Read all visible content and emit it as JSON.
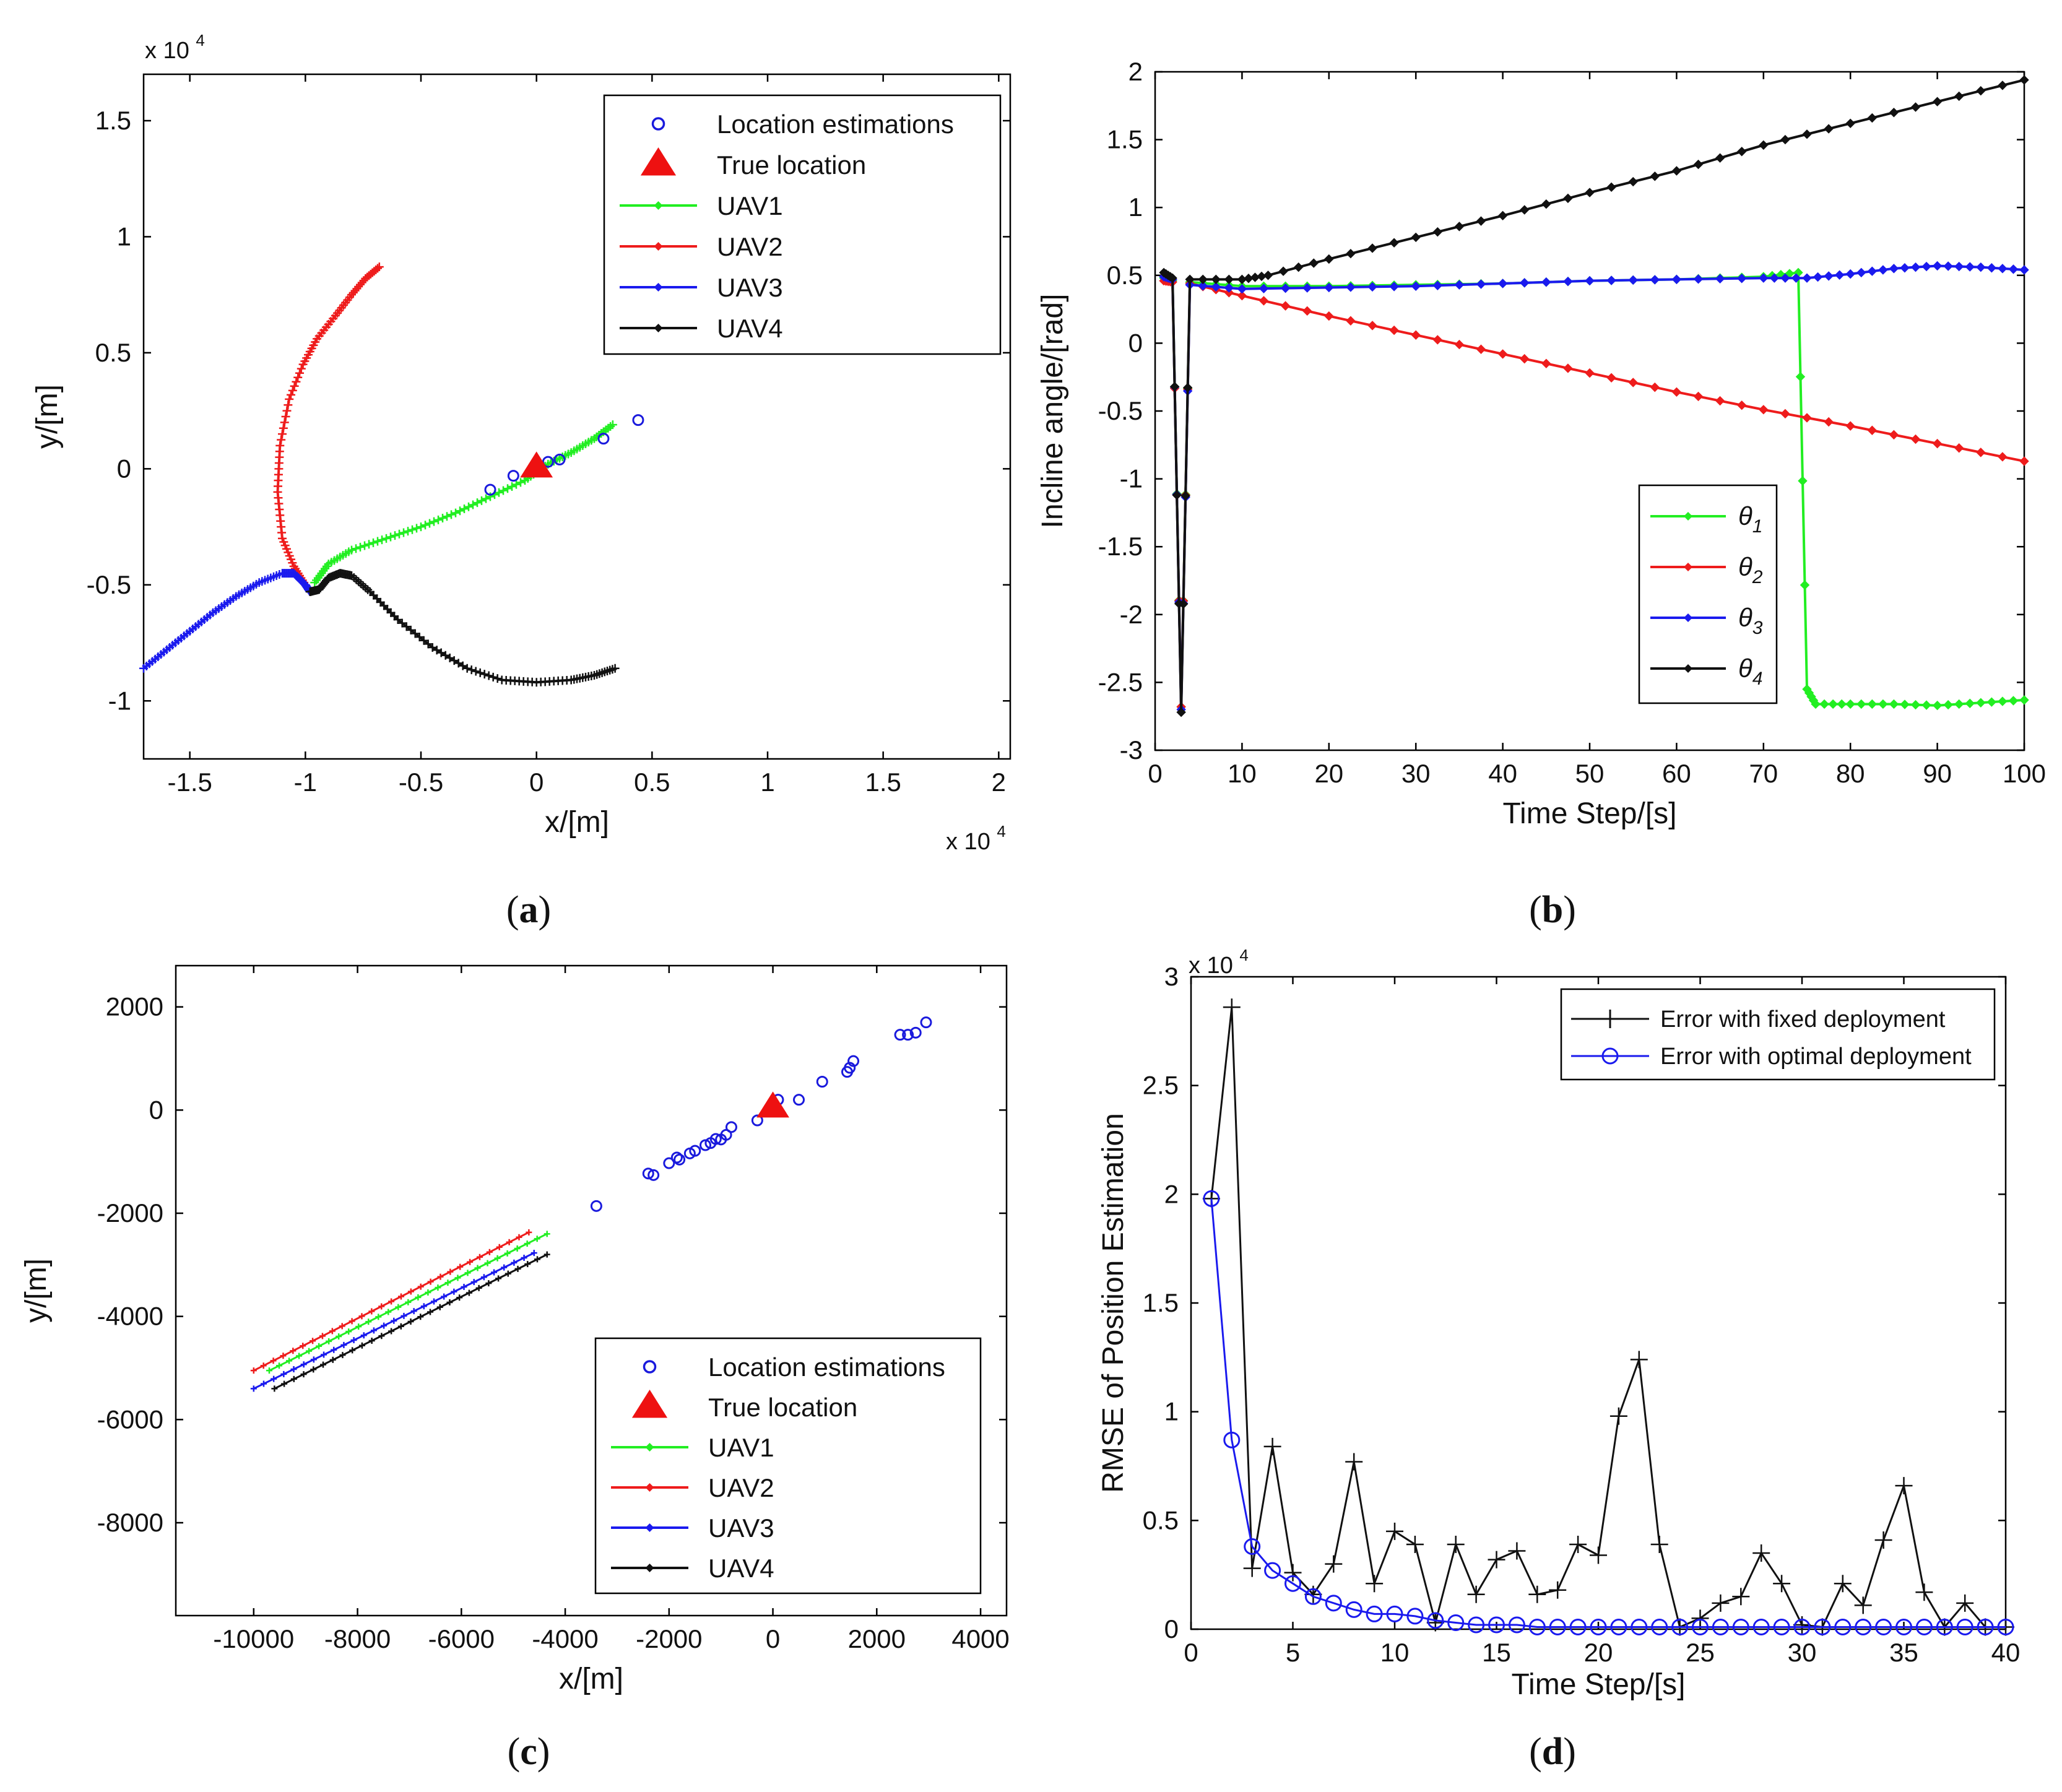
{
  "figure": {
    "panels": [
      {
        "id": "a",
        "caption_open": "(",
        "caption_letter": "a",
        "caption_close": ")"
      },
      {
        "id": "b",
        "caption_open": "(",
        "caption_letter": "b",
        "caption_close": ")"
      },
      {
        "id": "c",
        "caption_open": "(",
        "caption_letter": "c",
        "caption_close": ")"
      },
      {
        "id": "d",
        "caption_open": "(",
        "caption_letter": "d",
        "caption_close": ")"
      }
    ]
  },
  "colors": {
    "green": "#22ee22",
    "red": "#ee1c1c",
    "blue": "#1a1aee",
    "black": "#111111",
    "estimation": "#1a1add",
    "true_location": "#ee1111"
  },
  "chart_data": [
    {
      "id": "a",
      "type": "line",
      "title": "",
      "xlabel": "x/[m]",
      "ylabel": "y/[m]",
      "xlim": [
        -1.7,
        2.05
      ],
      "ylim": [
        -1.25,
        1.7
      ],
      "x_multiplier_base": "x 10",
      "x_multiplier_exp": "4",
      "y_multiplier_base": "x 10",
      "y_multiplier_exp": "4",
      "xticks": [
        -1.5,
        -1,
        -0.5,
        0,
        0.5,
        1,
        1.5,
        2
      ],
      "xtick_labels": [
        "-1.5",
        "-1",
        "-0.5",
        "0",
        "0.5",
        "1",
        "1.5",
        "2"
      ],
      "yticks": [
        -1,
        -0.5,
        0,
        0.5,
        1,
        1.5
      ],
      "ytick_labels": [
        "-1",
        "-0.5",
        "0",
        "0.5",
        "1",
        "1.5"
      ],
      "legend": [
        "Location estimations",
        "True location",
        "UAV1",
        "UAV2",
        "UAV3",
        "UAV4"
      ],
      "legend_position": "top-right",
      "series": [
        {
          "name": "UAV1",
          "color": "green",
          "points": [
            [
              -0.96,
              -0.49
            ],
            [
              -0.9,
              -0.41
            ],
            [
              -0.8,
              -0.35
            ],
            [
              -0.65,
              -0.3
            ],
            [
              -0.5,
              -0.25
            ],
            [
              -0.35,
              -0.19
            ],
            [
              -0.2,
              -0.12
            ],
            [
              -0.05,
              -0.05
            ],
            [
              0.05,
              0.02
            ],
            [
              0.15,
              0.07
            ],
            [
              0.25,
              0.13
            ],
            [
              0.33,
              0.19
            ]
          ]
        },
        {
          "name": "UAV2",
          "color": "red",
          "points": [
            [
              -1.0,
              -0.5
            ],
            [
              -1.05,
              -0.42
            ],
            [
              -1.1,
              -0.3
            ],
            [
              -1.12,
              -0.1
            ],
            [
              -1.11,
              0.1
            ],
            [
              -1.07,
              0.3
            ],
            [
              -1.01,
              0.45
            ],
            [
              -0.95,
              0.56
            ],
            [
              -0.87,
              0.66
            ],
            [
              -0.8,
              0.75
            ],
            [
              -0.74,
              0.82
            ],
            [
              -0.68,
              0.87
            ]
          ]
        },
        {
          "name": "UAV3",
          "color": "blue",
          "points": [
            [
              -1.7,
              -0.86
            ],
            [
              -1.6,
              -0.78
            ],
            [
              -1.5,
              -0.7
            ],
            [
              -1.4,
              -0.62
            ],
            [
              -1.3,
              -0.55
            ],
            [
              -1.2,
              -0.49
            ],
            [
              -1.1,
              -0.45
            ],
            [
              -1.05,
              -0.45
            ],
            [
              -1.0,
              -0.5
            ],
            [
              -0.98,
              -0.53
            ]
          ]
        },
        {
          "name": "UAV4",
          "color": "black",
          "points": [
            [
              -0.98,
              -0.53
            ],
            [
              -0.94,
              -0.52
            ],
            [
              -0.9,
              -0.47
            ],
            [
              -0.85,
              -0.45
            ],
            [
              -0.8,
              -0.46
            ],
            [
              -0.72,
              -0.53
            ],
            [
              -0.6,
              -0.65
            ],
            [
              -0.45,
              -0.77
            ],
            [
              -0.3,
              -0.86
            ],
            [
              -0.15,
              -0.91
            ],
            [
              0.0,
              -0.92
            ],
            [
              0.15,
              -0.91
            ],
            [
              0.25,
              -0.89
            ],
            [
              0.34,
              -0.86
            ]
          ]
        }
      ],
      "estimations": [
        [
          0.44,
          0.21
        ],
        [
          0.29,
          0.13
        ],
        [
          0.1,
          0.04
        ],
        [
          0.05,
          0.03
        ],
        [
          -0.02,
          -0.01
        ],
        [
          -0.1,
          -0.03
        ],
        [
          -0.2,
          -0.09
        ]
      ],
      "true_location": [
        0,
        0
      ]
    },
    {
      "id": "b",
      "type": "line",
      "title": "",
      "xlabel": "Time Step/[s]",
      "ylabel": "Incline angle/[rad]",
      "xlim": [
        0,
        100
      ],
      "ylim": [
        -3,
        2
      ],
      "xticks": [
        0,
        10,
        20,
        30,
        40,
        50,
        60,
        70,
        80,
        90,
        100
      ],
      "xtick_labels": [
        "0",
        "10",
        "20",
        "30",
        "40",
        "50",
        "60",
        "70",
        "80",
        "90",
        "100"
      ],
      "yticks": [
        -3,
        -2.5,
        -2,
        -1.5,
        -1,
        -0.5,
        0,
        0.5,
        1,
        1.5,
        2
      ],
      "ytick_labels": [
        "-3",
        "-2.5",
        "-2",
        "-1.5",
        "-1",
        "-0.5",
        "0",
        "0.5",
        "1",
        "1.5",
        "2"
      ],
      "legend": [
        "θ1",
        "θ2",
        "θ3",
        "θ4"
      ],
      "legend_symbol": "θ",
      "legend_subscripts": [
        "1",
        "2",
        "3",
        "4"
      ],
      "legend_position": "bottom-right",
      "series": [
        {
          "name": "θ1",
          "color": "green",
          "points": [
            [
              1,
              0.48
            ],
            [
              2,
              0.46
            ],
            [
              3,
              -2.68
            ],
            [
              4,
              0.45
            ],
            [
              10,
              0.42
            ],
            [
              20,
              0.42
            ],
            [
              30,
              0.43
            ],
            [
              40,
              0.44
            ],
            [
              50,
              0.46
            ],
            [
              60,
              0.47
            ],
            [
              70,
              0.49
            ],
            [
              74,
              0.52
            ],
            [
              75,
              -2.55
            ],
            [
              76,
              -2.66
            ],
            [
              80,
              -2.66
            ],
            [
              85,
              -2.66
            ],
            [
              90,
              -2.67
            ],
            [
              95,
              -2.65
            ],
            [
              100,
              -2.63
            ]
          ]
        },
        {
          "name": "θ2",
          "color": "red",
          "points": [
            [
              1,
              0.46
            ],
            [
              2,
              0.45
            ],
            [
              3,
              -2.68
            ],
            [
              4,
              0.44
            ],
            [
              10,
              0.35
            ],
            [
              20,
              0.2
            ],
            [
              30,
              0.06
            ],
            [
              40,
              -0.08
            ],
            [
              50,
              -0.22
            ],
            [
              60,
              -0.36
            ],
            [
              70,
              -0.49
            ],
            [
              80,
              -0.61
            ],
            [
              90,
              -0.74
            ],
            [
              100,
              -0.87
            ]
          ]
        },
        {
          "name": "θ3",
          "color": "blue",
          "points": [
            [
              1,
              0.49
            ],
            [
              2,
              0.47
            ],
            [
              3,
              -2.7
            ],
            [
              4,
              0.43
            ],
            [
              10,
              0.4
            ],
            [
              20,
              0.41
            ],
            [
              30,
              0.42
            ],
            [
              40,
              0.44
            ],
            [
              50,
              0.46
            ],
            [
              60,
              0.47
            ],
            [
              70,
              0.48
            ],
            [
              75,
              0.48
            ],
            [
              80,
              0.51
            ],
            [
              85,
              0.55
            ],
            [
              90,
              0.57
            ],
            [
              95,
              0.56
            ],
            [
              100,
              0.54
            ]
          ]
        },
        {
          "name": "θ4",
          "color": "black",
          "points": [
            [
              1,
              0.52
            ],
            [
              2,
              0.48
            ],
            [
              3,
              -2.72
            ],
            [
              4,
              0.47
            ],
            [
              10,
              0.47
            ],
            [
              13,
              0.5
            ],
            [
              20,
              0.62
            ],
            [
              30,
              0.78
            ],
            [
              40,
              0.94
            ],
            [
              50,
              1.11
            ],
            [
              60,
              1.27
            ],
            [
              70,
              1.46
            ],
            [
              80,
              1.62
            ],
            [
              90,
              1.78
            ],
            [
              100,
              1.94
            ]
          ]
        }
      ]
    },
    {
      "id": "c",
      "type": "line",
      "title": "",
      "xlabel": "x/[m]",
      "ylabel": "y/[m]",
      "xlim": [
        -11500,
        4500
      ],
      "ylim": [
        -9800,
        2800
      ],
      "xticks": [
        -10000,
        -8000,
        -6000,
        -4000,
        -2000,
        0,
        2000,
        4000
      ],
      "xtick_labels": [
        "-10000",
        "-8000",
        "-6000",
        "-4000",
        "-2000",
        "0",
        "2000",
        "4000"
      ],
      "yticks": [
        -8000,
        -6000,
        -4000,
        -2000,
        0,
        2000
      ],
      "ytick_labels": [
        "-8000",
        "-6000",
        "-4000",
        "-2000",
        "0",
        "2000"
      ],
      "legend": [
        "Location estimations",
        "True location",
        "UAV1",
        "UAV2",
        "UAV3",
        "UAV4"
      ],
      "legend_position": "bottom-right",
      "series": [
        {
          "name": "UAV1",
          "color": "green",
          "points": [
            [
              -9700,
              -5050
            ],
            [
              -4350,
              -2400
            ]
          ]
        },
        {
          "name": "UAV2",
          "color": "red",
          "points": [
            [
              -10000,
              -5050
            ],
            [
              -4700,
              -2370
            ]
          ]
        },
        {
          "name": "UAV3",
          "color": "blue",
          "points": [
            [
              -10000,
              -5400
            ],
            [
              -4600,
              -2770
            ]
          ]
        },
        {
          "name": "UAV4",
          "color": "black",
          "points": [
            [
              -9600,
              -5400
            ],
            [
              -4350,
              -2800
            ]
          ]
        }
      ],
      "estimations": [
        [
          2950,
          1700
        ],
        [
          2750,
          1500
        ],
        [
          2600,
          1460
        ],
        [
          2450,
          1460
        ],
        [
          1550,
          950
        ],
        [
          1480,
          820
        ],
        [
          1430,
          740
        ],
        [
          950,
          550
        ],
        [
          500,
          200
        ],
        [
          100,
          200
        ],
        [
          -300,
          -200
        ],
        [
          -800,
          -330
        ],
        [
          -900,
          -480
        ],
        [
          -1000,
          -570
        ],
        [
          -1100,
          -560
        ],
        [
          -1200,
          -640
        ],
        [
          -1300,
          -680
        ],
        [
          -1500,
          -790
        ],
        [
          -1600,
          -840
        ],
        [
          -1800,
          -960
        ],
        [
          -1850,
          -920
        ],
        [
          -2000,
          -1030
        ],
        [
          -2300,
          -1260
        ],
        [
          -2400,
          -1230
        ],
        [
          -3400,
          -1860
        ]
      ],
      "true_location": [
        0,
        0
      ]
    },
    {
      "id": "d",
      "type": "line",
      "title": "",
      "xlabel": "Time Step/[s]",
      "ylabel": "RMSE of Position Estimation",
      "xlim": [
        0,
        40
      ],
      "ylim": [
        0,
        3
      ],
      "y_multiplier_base": "x 10",
      "y_multiplier_exp": "4",
      "xticks": [
        0,
        5,
        10,
        15,
        20,
        25,
        30,
        35,
        40
      ],
      "xtick_labels": [
        "0",
        "5",
        "10",
        "15",
        "20",
        "25",
        "30",
        "35",
        "40"
      ],
      "yticks": [
        0,
        0.5,
        1,
        1.5,
        2,
        2.5,
        3
      ],
      "ytick_labels": [
        "0",
        "0.5",
        "1",
        "1.5",
        "2",
        "2.5",
        "3"
      ],
      "legend": [
        "Error with fixed deployment",
        "Error with optimal deployment"
      ],
      "legend_position": "top-right",
      "series": [
        {
          "name": "Error with fixed deployment",
          "color": "black",
          "marker": "plus",
          "x": [
            1,
            2,
            3,
            4,
            5,
            6,
            7,
            8,
            9,
            10,
            11,
            12,
            13,
            14,
            15,
            16,
            17,
            18,
            19,
            20,
            21,
            22,
            23,
            24,
            25,
            26,
            27,
            28,
            29,
            30,
            31,
            32,
            33,
            34,
            35,
            36,
            37,
            38,
            39,
            40
          ],
          "values": [
            1.98,
            2.86,
            0.28,
            0.84,
            0.26,
            0.16,
            0.3,
            0.77,
            0.21,
            0.45,
            0.39,
            0.03,
            0.39,
            0.16,
            0.32,
            0.36,
            0.16,
            0.18,
            0.39,
            0.34,
            0.98,
            1.24,
            0.39,
            0.01,
            0.05,
            0.12,
            0.15,
            0.35,
            0.21,
            0.02,
            0.01,
            0.21,
            0.11,
            0.41,
            0.66,
            0.17,
            0.01,
            0.12,
            0.01,
            0.01
          ]
        },
        {
          "name": "Error with optimal deployment",
          "color": "blue",
          "marker": "circle",
          "x": [
            1,
            2,
            3,
            4,
            5,
            6,
            7,
            8,
            9,
            10,
            11,
            12,
            13,
            14,
            15,
            16,
            17,
            18,
            19,
            20,
            21,
            22,
            23,
            24,
            25,
            26,
            27,
            28,
            29,
            30,
            31,
            32,
            33,
            34,
            35,
            36,
            37,
            38,
            39,
            40
          ],
          "values": [
            1.98,
            0.87,
            0.38,
            0.27,
            0.21,
            0.15,
            0.12,
            0.09,
            0.07,
            0.07,
            0.06,
            0.04,
            0.03,
            0.02,
            0.02,
            0.02,
            0.01,
            0.01,
            0.01,
            0.01,
            0.01,
            0.01,
            0.01,
            0.01,
            0.01,
            0.01,
            0.01,
            0.01,
            0.01,
            0.01,
            0.01,
            0.01,
            0.01,
            0.01,
            0.01,
            0.01,
            0.01,
            0.01,
            0.01,
            0.01
          ]
        }
      ]
    }
  ]
}
